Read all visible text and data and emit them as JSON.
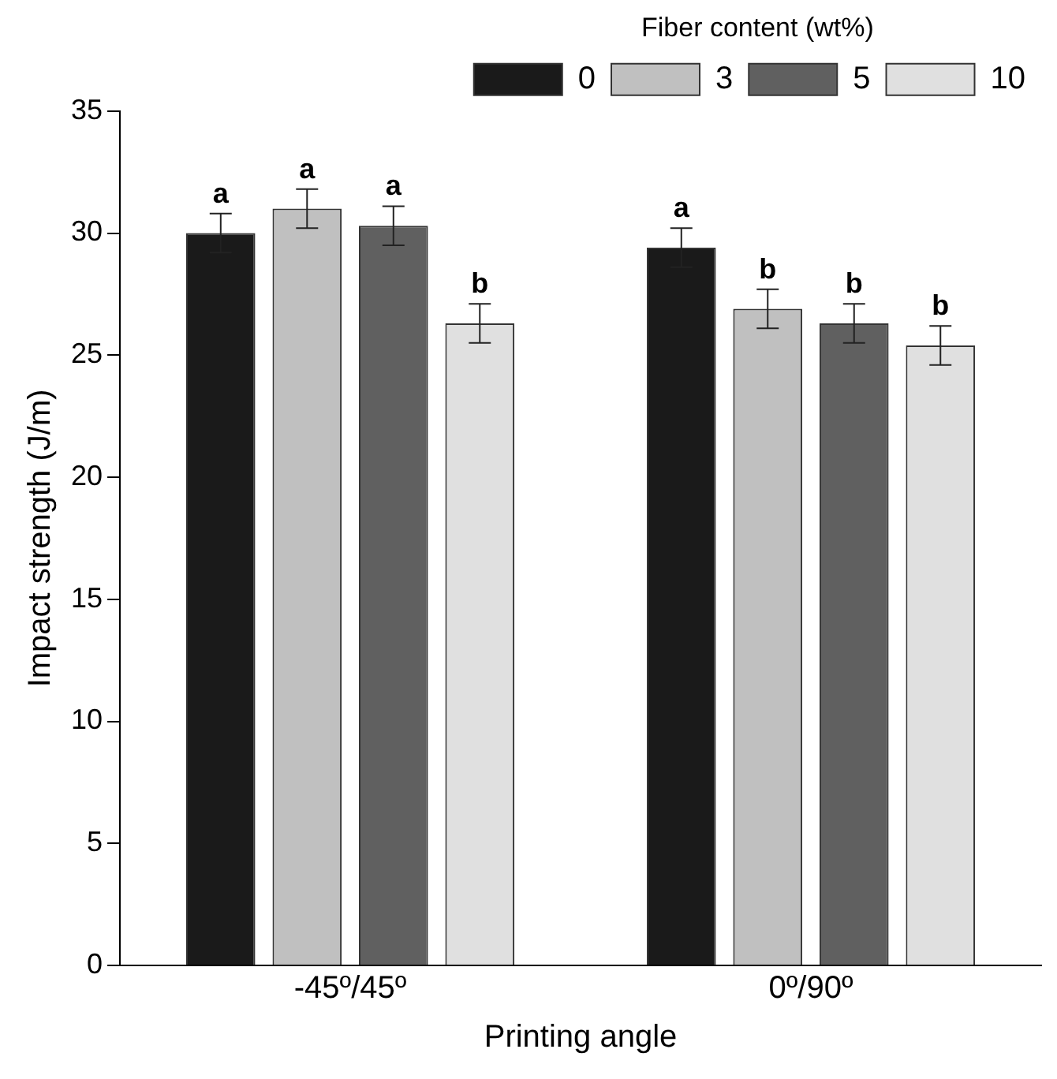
{
  "chart_data": {
    "type": "bar",
    "xlabel": "Printing angle",
    "ylabel": "Impact strength (J/m)",
    "legend_title": "Fiber content (wt%)",
    "categories": [
      "-45º/45º",
      "0º/90º"
    ],
    "series": [
      {
        "name": "0",
        "color": "#1a1a1a",
        "values": [
          30.0,
          29.4
        ],
        "errors": [
          0.8,
          0.8
        ],
        "value_labels": [
          "a",
          "a"
        ]
      },
      {
        "name": "3",
        "color": "#c0c0c0",
        "values": [
          31.0,
          26.9
        ],
        "errors": [
          0.8,
          0.8
        ],
        "value_labels": [
          "a",
          "b"
        ]
      },
      {
        "name": "5",
        "color": "#606060",
        "values": [
          30.3,
          26.3
        ],
        "errors": [
          0.8,
          0.8
        ],
        "value_labels": [
          "a",
          "b"
        ]
      },
      {
        "name": "10",
        "color": "#e0e0e0",
        "values": [
          26.3,
          25.4
        ],
        "errors": [
          0.8,
          0.8
        ],
        "value_labels": [
          "b",
          "b"
        ]
      }
    ],
    "ylim": [
      0,
      35
    ],
    "yticks": [
      0,
      5,
      10,
      15,
      20,
      25,
      30,
      35
    ],
    "grid": false,
    "legend": "top right"
  }
}
